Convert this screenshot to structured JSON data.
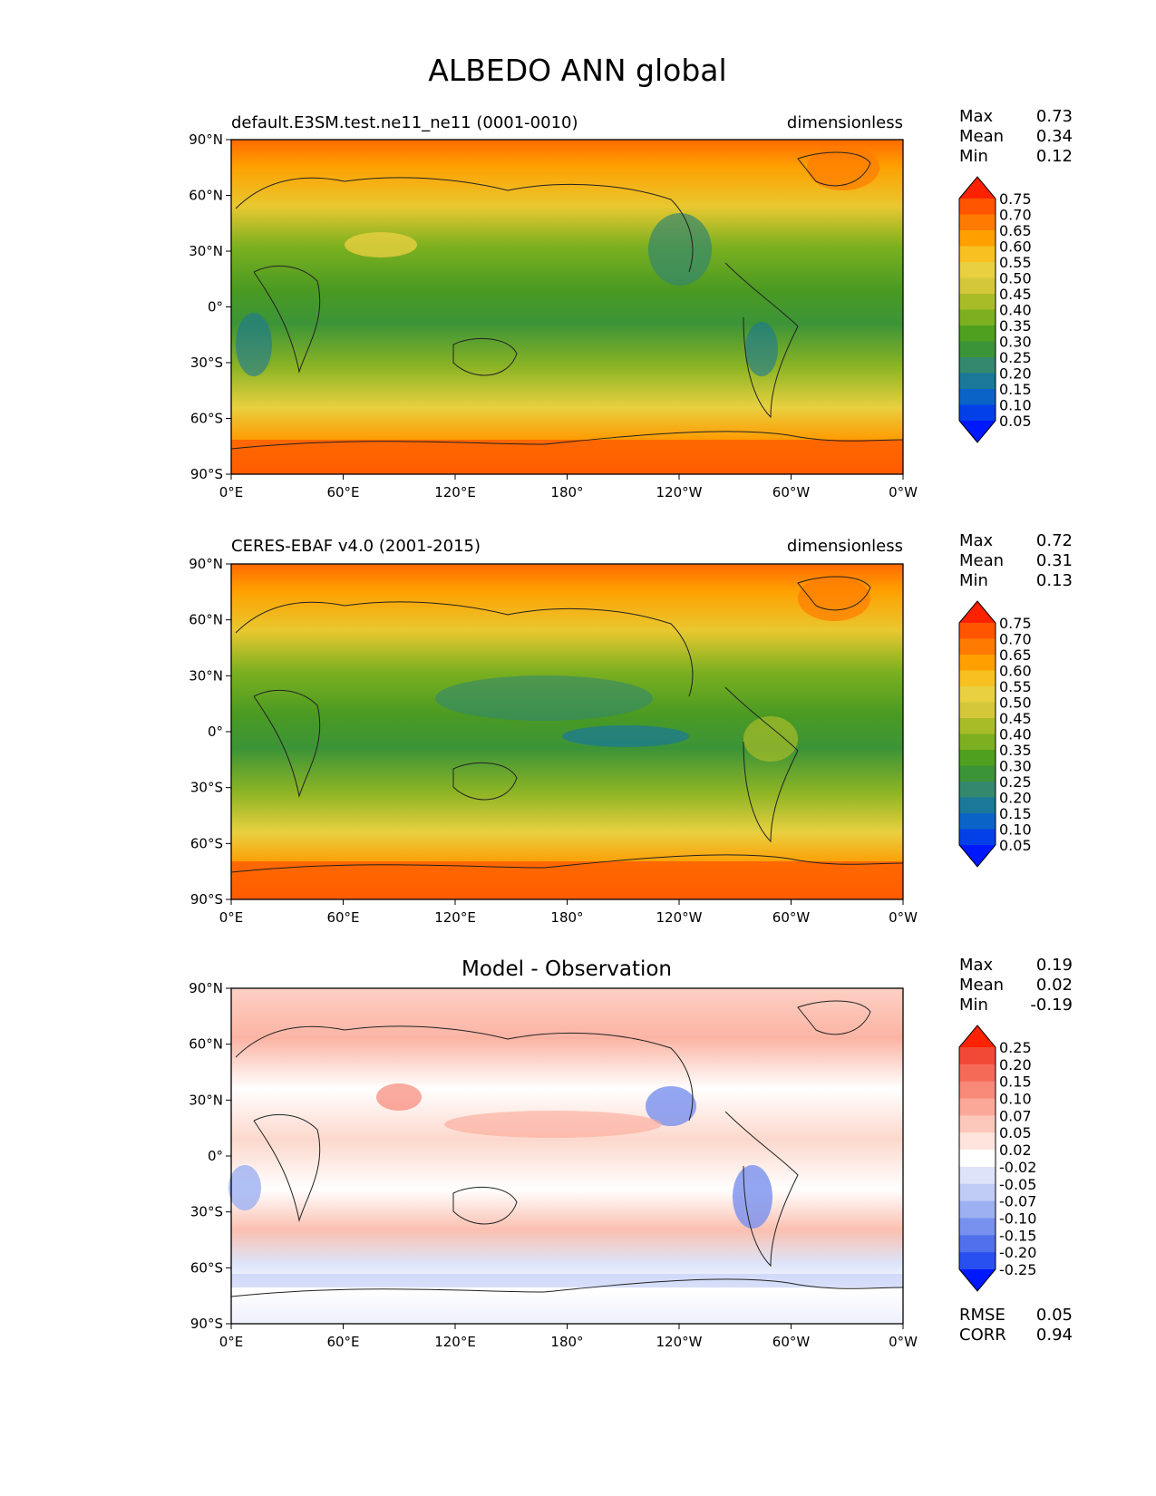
{
  "figure": {
    "title": "ALBEDO ANN global"
  },
  "axes": {
    "x_ticks": [
      "0°E",
      "60°E",
      "120°E",
      "180°",
      "120°W",
      "60°W",
      "0°W"
    ],
    "y_ticks": [
      "90°N",
      "60°N",
      "30°N",
      "0°",
      "30°S",
      "60°S",
      "90°S"
    ],
    "lon_range": [
      0,
      360
    ],
    "lat_range": [
      -90,
      90
    ]
  },
  "panels": [
    {
      "key": "test",
      "left_title": "default.E3SM.test.ne11_ne11 (0001-0010)",
      "right_title": "dimensionless",
      "center_title": "",
      "stats": [
        {
          "label": "Max",
          "value": "0.73"
        },
        {
          "label": "Mean",
          "value": "0.34"
        },
        {
          "label": "Min",
          "value": "0.12"
        }
      ],
      "extra_stats": [],
      "colorbar": {
        "levels": [
          "0.75",
          "0.70",
          "0.65",
          "0.60",
          "0.55",
          "0.50",
          "0.45",
          "0.40",
          "0.35",
          "0.30",
          "0.25",
          "0.20",
          "0.15",
          "0.10",
          "0.05"
        ],
        "colors": [
          "#ff2200",
          "#ff5500",
          "#ff7a00",
          "#ffa000",
          "#f8c020",
          "#e8d040",
          "#d4c83a",
          "#a8bc28",
          "#7cb020",
          "#4fa01e",
          "#3c9438",
          "#34886e",
          "#1a7898",
          "#0a64c8",
          "#0440e8",
          "#0018ff"
        ]
      }
    },
    {
      "key": "reference",
      "left_title": "CERES-EBAF v4.0 (2001-2015)",
      "right_title": "dimensionless",
      "center_title": "",
      "stats": [
        {
          "label": "Max",
          "value": "0.72"
        },
        {
          "label": "Mean",
          "value": "0.31"
        },
        {
          "label": "Min",
          "value": "0.13"
        }
      ],
      "extra_stats": [],
      "colorbar": {
        "levels": [
          "0.75",
          "0.70",
          "0.65",
          "0.60",
          "0.55",
          "0.50",
          "0.45",
          "0.40",
          "0.35",
          "0.30",
          "0.25",
          "0.20",
          "0.15",
          "0.10",
          "0.05"
        ],
        "colors": [
          "#ff2200",
          "#ff5500",
          "#ff7a00",
          "#ffa000",
          "#f8c020",
          "#e8d040",
          "#d4c83a",
          "#a8bc28",
          "#7cb020",
          "#4fa01e",
          "#3c9438",
          "#34886e",
          "#1a7898",
          "#0a64c8",
          "#0440e8",
          "#0018ff"
        ]
      }
    },
    {
      "key": "difference",
      "left_title": "",
      "right_title": "",
      "center_title": "Model - Observation",
      "stats": [
        {
          "label": "Max",
          "value": "0.19"
        },
        {
          "label": "Mean",
          "value": "0.02"
        },
        {
          "label": "Min",
          "value": "-0.19"
        }
      ],
      "extra_stats": [
        {
          "label": "RMSE",
          "value": "0.05"
        },
        {
          "label": "CORR",
          "value": "0.94"
        }
      ],
      "colorbar": {
        "levels": [
          "0.25",
          "0.20",
          "0.15",
          "0.10",
          "0.07",
          "0.05",
          "0.02",
          "-0.02",
          "-0.05",
          "-0.07",
          "-0.10",
          "-0.15",
          "-0.20",
          "-0.25"
        ],
        "colors": [
          "#ff2200",
          "#f24836",
          "#f56a56",
          "#f88878",
          "#fba898",
          "#fdc8bc",
          "#fee4dc",
          "#ffffff",
          "#dde4fa",
          "#c0ccf6",
          "#9cb0f2",
          "#7890ee",
          "#5070ec",
          "#2850f0",
          "#0018ff"
        ]
      }
    }
  ]
}
